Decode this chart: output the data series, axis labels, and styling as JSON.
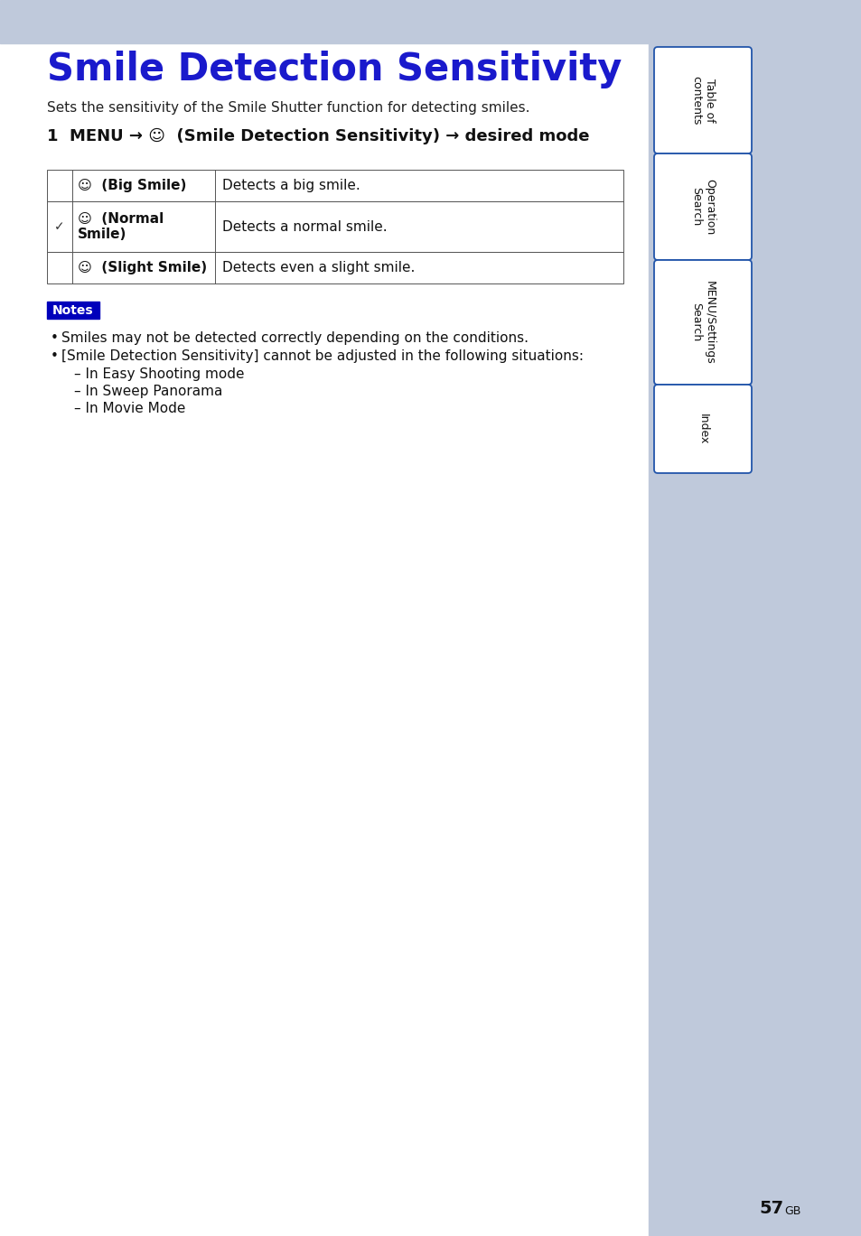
{
  "title": "Smile Detection Sensitivity",
  "title_color": "#1a1acc",
  "header_bg": "#bfc9db",
  "page_bg": "#ffffff",
  "subtitle": "Sets the sensitivity of the Smile Shutter function for detecting smiles.",
  "table_rows": [
    {
      "check": "",
      "label": "☺  (Big Smile)",
      "description": "Detects a big smile."
    },
    {
      "check": "✓",
      "label": "☺  (Normal\nSmile)",
      "description": "Detects a normal smile."
    },
    {
      "check": "",
      "label": "☺  (Slight Smile)",
      "description": "Detects even a slight smile."
    }
  ],
  "notes_label": "Notes",
  "notes_bg": "#0000bb",
  "notes_color": "#ffffff",
  "bullet_points": [
    "Smiles may not be detected correctly depending on the conditions.",
    "[Smile Detection Sensitivity] cannot be adjusted in the following situations:"
  ],
  "sub_bullets": [
    "In Easy Shooting mode",
    "In Sweep Panorama",
    "In Movie Mode"
  ],
  "sidebar_items": [
    "Table of\ncontents",
    "Operation\nSearch",
    "MENU/Settings\nSearch",
    "Index"
  ],
  "sidebar_border": "#2255aa",
  "sidebar_area_bg": "#bfc9db",
  "page_number": "57",
  "page_suffix": "GB"
}
